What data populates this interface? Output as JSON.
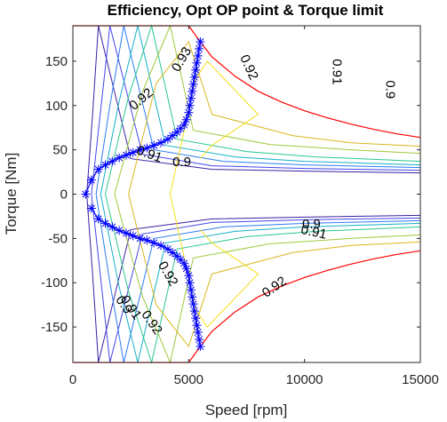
{
  "chart_data": {
    "type": "line",
    "title": "Efficiency, Opt OP point & Torque limit",
    "xlabel": "Speed [rpm]",
    "ylabel": "Torque [Nm]",
    "xlim": [
      0,
      15000
    ],
    "ylim": [
      -190,
      190
    ],
    "xticks": [
      0,
      5000,
      10000,
      15000
    ],
    "yticks": [
      150,
      100,
      50,
      0,
      -50,
      -100,
      -150
    ],
    "xtick_labels": [
      "0",
      "5000",
      "10000",
      "15000"
    ],
    "ytick_labels": [
      "150",
      "100",
      "50",
      "0",
      "-50",
      "-100",
      "-150"
    ],
    "grid": false,
    "colors": {
      "torque_limit": "#ff0000",
      "opt_op": "#0000ff",
      "axes": "#262626"
    },
    "series": [
      {
        "kind": "torque_limit",
        "x": [
          0,
          1000,
          2000,
          3000,
          4000,
          5000,
          5500,
          6000,
          7000,
          8000,
          9000,
          10000,
          11000,
          12000,
          13000,
          14000,
          15000
        ],
        "y": [
          190,
          190,
          190,
          190,
          190,
          190,
          172,
          155,
          133,
          116,
          104,
          94,
          86,
          79,
          73,
          68,
          64
        ]
      },
      {
        "kind": "torque_limit",
        "x": [
          0,
          1000,
          2000,
          3000,
          4000,
          5000,
          5500,
          6000,
          7000,
          8000,
          9000,
          10000,
          11000,
          12000,
          13000,
          14000,
          15000
        ],
        "y": [
          -190,
          -190,
          -190,
          -190,
          -190,
          -190,
          -172,
          -155,
          -133,
          -116,
          -104,
          -94,
          -86,
          -79,
          -73,
          -68,
          -64
        ]
      },
      {
        "kind": "opt_op",
        "x": [
          550,
          800,
          1100,
          1400,
          1700,
          2000,
          2300,
          2600,
          2900,
          3200,
          3500,
          3800,
          4100,
          4300,
          4500,
          4650,
          4800,
          4900,
          5000,
          5050,
          5100,
          5150,
          5200,
          5250,
          5300,
          5350,
          5400,
          5450,
          5500
        ],
        "y": [
          0,
          16,
          28,
          33,
          37,
          41,
          44,
          47,
          50,
          52,
          55,
          58,
          62,
          66,
          70,
          74,
          78,
          84,
          92,
          100,
          108,
          116,
          124,
          132,
          140,
          148,
          156,
          164,
          172
        ]
      },
      {
        "kind": "opt_op",
        "x": [
          800,
          1100,
          1400,
          1700,
          2000,
          2300,
          2600,
          2900,
          3200,
          3500,
          3800,
          4100,
          4300,
          4500,
          4650,
          4800,
          4900,
          5000,
          5050,
          5100,
          5150,
          5200,
          5250,
          5300,
          5350,
          5400,
          5450,
          5500
        ],
        "y": [
          -16,
          -28,
          -33,
          -37,
          -41,
          -44,
          -47,
          -50,
          -52,
          -55,
          -58,
          -62,
          -66,
          -70,
          -74,
          -78,
          -84,
          -92,
          -100,
          -108,
          -116,
          -124,
          -132,
          -140,
          -148,
          -156,
          -164,
          -172
        ]
      },
      {
        "kind": "contour",
        "color": "#3a1fa3",
        "x": [
          600,
          850,
          1100,
          2500,
          6000,
          10000,
          15000
        ],
        "y": [
          0,
          90,
          190,
          40,
          28,
          26,
          24
        ]
      },
      {
        "kind": "contour",
        "color": "#3a1fa3",
        "x": [
          600,
          850,
          1100,
          2500,
          6000,
          10000,
          15000
        ],
        "y": [
          0,
          -90,
          -190,
          -40,
          -28,
          -26,
          -24
        ]
      },
      {
        "kind": "contour",
        "color": "#4444e8",
        "x": [
          800,
          1200,
          1600,
          3000,
          6000,
          10000,
          15000
        ],
        "y": [
          0,
          95,
          190,
          45,
          32,
          29,
          27
        ]
      },
      {
        "kind": "contour",
        "color": "#4444e8",
        "x": [
          800,
          1200,
          1600,
          3000,
          6000,
          10000,
          15000
        ],
        "y": [
          0,
          -95,
          -190,
          -45,
          -32,
          -29,
          -27
        ]
      },
      {
        "kind": "contour",
        "color": "#2a7cf5",
        "x": [
          1000,
          1600,
          2200,
          3500,
          6500,
          10000,
          15000
        ],
        "y": [
          0,
          100,
          190,
          50,
          37,
          33,
          30
        ]
      },
      {
        "kind": "contour",
        "color": "#2a7cf5",
        "x": [
          1000,
          1600,
          2200,
          3500,
          6500,
          10000,
          15000
        ],
        "y": [
          0,
          -100,
          -190,
          -50,
          -37,
          -33,
          -30
        ]
      },
      {
        "kind": "contour",
        "color": "#14b0c8",
        "x": [
          1200,
          2000,
          2800,
          4000,
          7000,
          10000,
          15000
        ],
        "y": [
          0,
          105,
          190,
          55,
          42,
          37,
          33
        ]
      },
      {
        "kind": "contour",
        "color": "#14b0c8",
        "x": [
          1200,
          2000,
          2800,
          4000,
          7000,
          10000,
          15000
        ],
        "y": [
          0,
          -105,
          -190,
          -55,
          -42,
          -37,
          -33
        ]
      },
      {
        "kind": "contour",
        "color": "#27c98c",
        "x": [
          1400,
          2400,
          3400,
          4500,
          7500,
          10500,
          15000
        ],
        "y": [
          0,
          110,
          190,
          62,
          48,
          42,
          37
        ]
      },
      {
        "kind": "contour",
        "color": "#27c98c",
        "x": [
          1400,
          2400,
          3400,
          4500,
          7500,
          10500,
          15000
        ],
        "y": [
          0,
          -110,
          -190,
          -62,
          -48,
          -42,
          -37
        ]
      },
      {
        "kind": "contour",
        "color": "#9ec83a",
        "x": [
          1800,
          3000,
          4200,
          5200,
          8500,
          12000,
          15000
        ],
        "y": [
          0,
          115,
          190,
          72,
          56,
          50,
          46
        ]
      },
      {
        "kind": "contour",
        "color": "#9ec83a",
        "x": [
          1800,
          3000,
          4200,
          5200,
          8500,
          12000,
          15000
        ],
        "y": [
          0,
          -115,
          -190,
          -72,
          -56,
          -50,
          -46
        ]
      },
      {
        "kind": "contour",
        "color": "#d8b81e",
        "x": [
          2400,
          3600,
          5000,
          6000,
          9500,
          12000,
          15000
        ],
        "y": [
          0,
          125,
          172,
          90,
          66,
          58,
          54
        ]
      },
      {
        "kind": "contour",
        "color": "#d8b81e",
        "x": [
          2400,
          3600,
          5000,
          6000,
          9500,
          12000,
          15000
        ],
        "y": [
          0,
          -125,
          -172,
          -90,
          -66,
          -58,
          -54
        ]
      },
      {
        "kind": "contour",
        "color": "#f2e01a",
        "x": [
          4200,
          5300,
          5800,
          8000,
          6000,
          5500
        ],
        "y": [
          0,
          130,
          150,
          90,
          55,
          40
        ]
      },
      {
        "kind": "contour",
        "color": "#f2e01a",
        "x": [
          4200,
          5300,
          5800,
          8000,
          6000,
          5500
        ],
        "y": [
          0,
          -130,
          -150,
          -90,
          -55,
          -40
        ]
      }
    ],
    "annotations": [
      {
        "text": "0.92",
        "x": 2950,
        "y": 107,
        "rotation": -40
      },
      {
        "text": "0.93",
        "x": 4700,
        "y": 152,
        "rotation": -60
      },
      {
        "text": "0.92",
        "x": 7600,
        "y": 143,
        "rotation": 65
      },
      {
        "text": "0.91",
        "x": 11400,
        "y": 138,
        "rotation": 90
      },
      {
        "text": "0.9",
        "x": 13700,
        "y": 118,
        "rotation": 90
      },
      {
        "text": "0.91",
        "x": 3300,
        "y": 45,
        "rotation": 20
      },
      {
        "text": "0.9",
        "x": 4700,
        "y": 36,
        "rotation": 0
      },
      {
        "text": "0.9",
        "x": 10300,
        "y": -34,
        "rotation": 0
      },
      {
        "text": "0.91",
        "x": 10400,
        "y": -43,
        "rotation": 12
      },
      {
        "text": "0.92",
        "x": 8700,
        "y": -105,
        "rotation": -35
      },
      {
        "text": "0.92",
        "x": 4100,
        "y": -90,
        "rotation": 60
      },
      {
        "text": "0.91",
        "x": 2500,
        "y": -128,
        "rotation": 55
      },
      {
        "text": "0.9",
        "x": 2200,
        "y": -125,
        "rotation": 55
      },
      {
        "text": "0.92",
        "x": 3400,
        "y": -145,
        "rotation": 55
      }
    ]
  }
}
